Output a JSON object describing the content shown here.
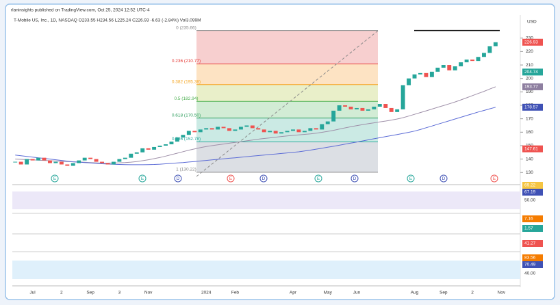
{
  "header": "rlaninsights published on TradingView.com, Oct 25, 2024 12:52 UTC-4",
  "symbol": "T-Mobile US, Inc., 1D, NASDAQ  O233.55  H234.56  L225.24  C226.93  -6.63 (-2.84%)  Vol3.099M",
  "chart_data": {
    "type": "candlestick",
    "currency": "USD",
    "categories": [
      null,
      null,
      null,
      "Jul",
      null,
      null,
      null,
      null,
      "2",
      null,
      null,
      null,
      null,
      "Sep",
      null,
      null,
      null,
      null,
      "3",
      null,
      null,
      null,
      null,
      "Nov",
      null,
      null,
      null,
      null,
      null,
      null,
      null,
      null,
      null,
      "2024",
      null,
      null,
      null,
      null,
      "Feb",
      null,
      null,
      null,
      null,
      null,
      null,
      null,
      null,
      null,
      "Apr",
      null,
      null,
      null,
      null,
      null,
      "May",
      null,
      null,
      null,
      null,
      "Jun",
      null,
      null,
      null,
      null,
      null,
      null,
      null,
      null,
      null,
      "Aug",
      null,
      null,
      null,
      null,
      "Sep",
      null,
      null,
      null,
      null,
      "2",
      null,
      null,
      null,
      null,
      "Nov",
      null
    ],
    "series": [
      {
        "name": "Close",
        "color": "#26a69a",
        "down_color": "#ef5350",
        "values": [
          138,
          136,
          140,
          139,
          141,
          139,
          137,
          138,
          136,
          135,
          137,
          139,
          141,
          140,
          138,
          137,
          136,
          138,
          140,
          141,
          144,
          145,
          148,
          147,
          149,
          150,
          151,
          153,
          156,
          158,
          161,
          160,
          162,
          163,
          162,
          164,
          163,
          161,
          162,
          164,
          165,
          163,
          162,
          160,
          161,
          159,
          160,
          161,
          162,
          160,
          161,
          163,
          162,
          166,
          168,
          176,
          180,
          179,
          177,
          178,
          176,
          177,
          179,
          181,
          178,
          175,
          177,
          195,
          200,
          203,
          204,
          201,
          205,
          208,
          210,
          206,
          209,
          212,
          214,
          213,
          216,
          219,
          224,
          226.93,
          null,
          null
        ]
      },
      {
        "name": "MA 50",
        "color": "#9e8fa8",
        "values": [
          140,
          139.8,
          139.6,
          139.4,
          139.2,
          139,
          138.8,
          138.6,
          138.4,
          138.2,
          138,
          137.8,
          137.6,
          137.4,
          137.2,
          137,
          137,
          137.1,
          137.2,
          137.4,
          137.7,
          138.2,
          138.8,
          139.5,
          140.3,
          141.2,
          142.2,
          143.3,
          144.4,
          145.5,
          146.6,
          147.6,
          148.5,
          149.3,
          150,
          150.6,
          151.2,
          151.8,
          152.4,
          153,
          153.6,
          154.2,
          154.8,
          155.3,
          155.8,
          156.3,
          156.8,
          157.2,
          157.6,
          158,
          158.4,
          158.8,
          159.3,
          159.9,
          160.6,
          161.4,
          162.3,
          163.2,
          164.1,
          164.9,
          165.6,
          166.3,
          167,
          167.7,
          168.3,
          169,
          169.8,
          170.8,
          172,
          173.3,
          174.6,
          175.9,
          177.2,
          178.5,
          179.8,
          181.1,
          182.5,
          184,
          185.6,
          187.2,
          188.8,
          190.4,
          192.1,
          193.77,
          null,
          null
        ]
      },
      {
        "name": "MA 200",
        "color": "#5b6bd6",
        "values": [
          143,
          142.5,
          142,
          141.5,
          141,
          140.5,
          140,
          139.5,
          139,
          138.5,
          138,
          137.7,
          137.4,
          137.1,
          136.8,
          136.5,
          136.3,
          136.1,
          136,
          135.9,
          135.8,
          135.8,
          135.8,
          135.9,
          136,
          136.2,
          136.5,
          136.8,
          137.1,
          137.4,
          137.8,
          138.2,
          138.6,
          139,
          139.4,
          139.8,
          140.2,
          140.6,
          141,
          141.4,
          141.8,
          142.2,
          142.6,
          143,
          143.4,
          143.8,
          144.2,
          144.6,
          145,
          145.4,
          146,
          146.7,
          147.4,
          148.1,
          148.8,
          149.5,
          150.3,
          151.1,
          151.9,
          152.7,
          153.5,
          154.3,
          155.1,
          155.9,
          156.7,
          157.5,
          158.3,
          159.1,
          159.9,
          160.8,
          162,
          163.3,
          164.6,
          165.9,
          167.2,
          168.5,
          169.8,
          171.1,
          172.4,
          173.7,
          175,
          176.2,
          177.4,
          178.57,
          null,
          null
        ]
      }
    ],
    "ylim": [
      122,
      238
    ],
    "yticks": [
      130,
      140,
      150,
      160,
      170,
      180,
      190,
      200,
      210,
      220,
      230
    ],
    "fib": [
      {
        "value": 235.66,
        "label": "0 (235.66)"
      },
      {
        "value": 210.77,
        "label": "0.236 (210.77)"
      },
      {
        "value": 195.38,
        "label": "0.382 (195.38)"
      },
      {
        "value": 182.94,
        "label": "0.5 (182.94)"
      },
      {
        "value": 170.5,
        "label": "0.618 (170.50)"
      },
      {
        "value": 152.78,
        "label": "0.786 (152.78)"
      },
      {
        "value": 130.22,
        "label": "1 (130.22)"
      }
    ],
    "fib_line_colors": [
      "#888888",
      "#e53935",
      "#f5a623",
      "#4caf50",
      "#2e9e5e",
      "#26a69a",
      "#888888"
    ],
    "fib_zone_colors": [
      "#f7cfcf",
      "#fde3c3",
      "#e9efc9",
      "#d2ecd5",
      "#cbeae4",
      "#dcdfe4"
    ],
    "price_labels": [
      {
        "value": 226.93,
        "color": "#ef5350"
      },
      {
        "value": 204.74,
        "color": "#26a69a"
      },
      {
        "value": 193.77,
        "color": "#8e7fa0"
      },
      {
        "value": 178.57,
        "color": "#3f51b5"
      },
      {
        "value": 147.61,
        "color": "#ef5350"
      }
    ],
    "events": [
      {
        "label": "E",
        "color": "#26a69a"
      },
      {
        "label": "E",
        "color": "#26a69a"
      },
      {
        "label": "D",
        "color": "#3f51b5"
      },
      {
        "label": "E",
        "color": "#ef5350"
      },
      {
        "label": "D",
        "color": "#3f51b5"
      },
      {
        "label": "E",
        "color": "#26a69a"
      },
      {
        "label": "D",
        "color": "#3f51b5"
      },
      {
        "label": "E",
        "color": "#26a69a"
      },
      {
        "label": "D",
        "color": "#3f51b5"
      },
      {
        "label": "E",
        "color": "#ef5350"
      }
    ],
    "panels": [
      {
        "labels": [
          {
            "value": 69.22,
            "color": "#f5c542"
          },
          {
            "value": 67.19,
            "color": "#3f51b5"
          },
          {
            "value": 50.0,
            "label": "50.00",
            "color": null
          }
        ]
      },
      {
        "labels": [
          {
            "value": 7.16,
            "color": "#f57c00"
          },
          {
            "value": 1.57,
            "color": "#26a69a"
          }
        ]
      },
      {
        "labels": [
          {
            "value": 41.27,
            "color": "#ef5350"
          }
        ]
      },
      {
        "labels": [
          {
            "value": 83.56,
            "color": "#f57c00"
          },
          {
            "value": 70.49,
            "color": "#3f51b5"
          },
          {
            "value": 40.0,
            "label": "40.00",
            "color": null
          }
        ]
      }
    ]
  }
}
